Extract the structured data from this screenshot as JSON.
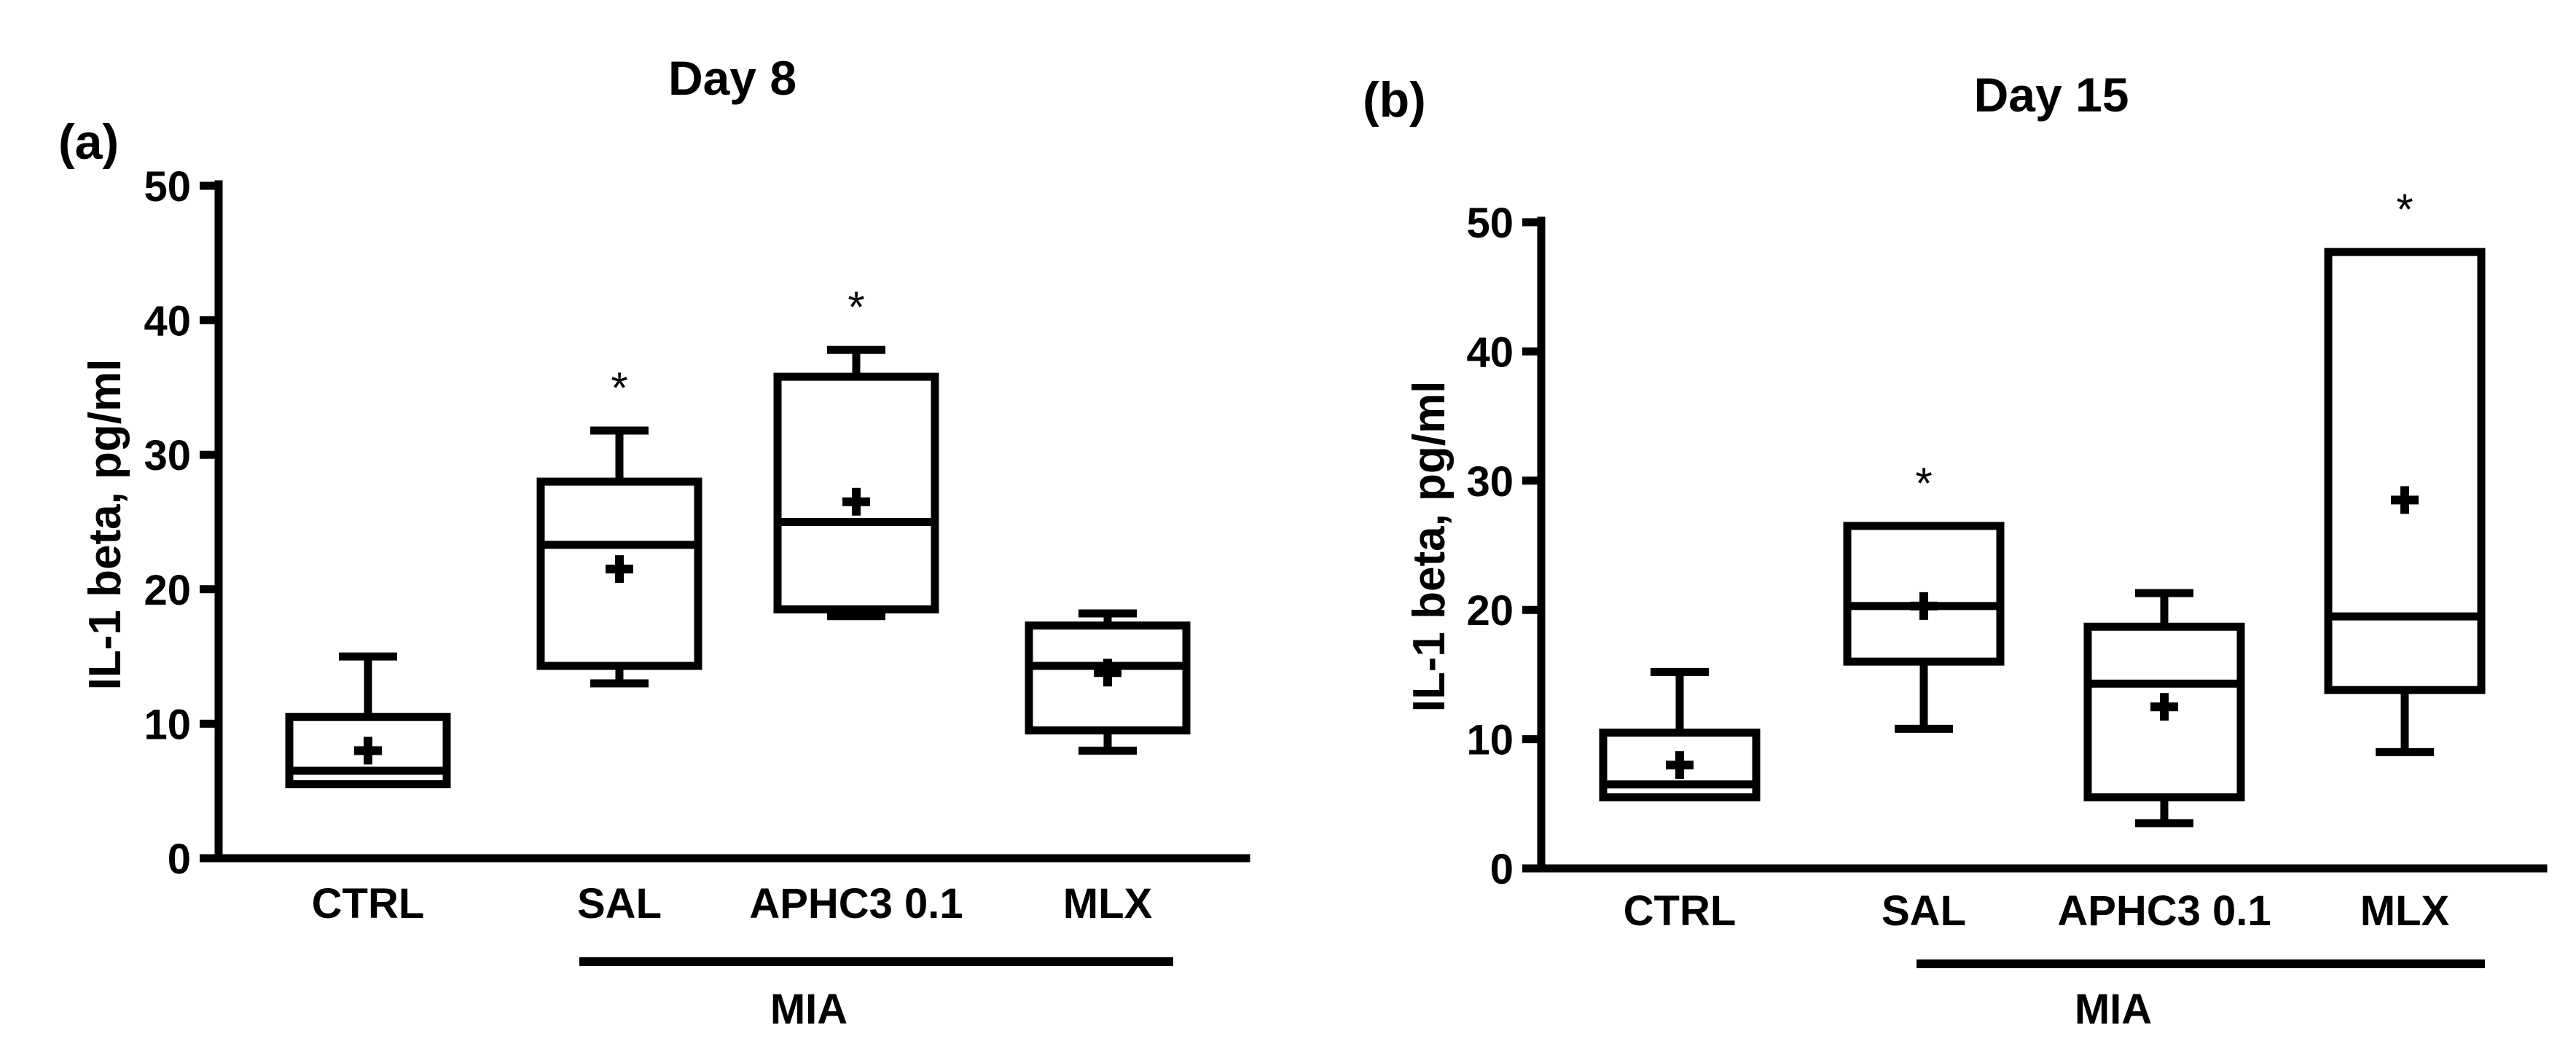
{
  "chart_data": [
    {
      "type": "box",
      "panel_label": "(a)",
      "title": "Day 8",
      "ylabel": "IL-1 beta, pg/ml",
      "ylim": [
        0,
        50
      ],
      "yticks": [
        "0",
        "10",
        "20",
        "30",
        "40",
        "50"
      ],
      "categories": [
        "CTRL",
        "SAL",
        "APHC3 0.1",
        "MLX"
      ],
      "group_label": "MIA",
      "group_categories": [
        "SAL",
        "APHC3 0.1",
        "MLX"
      ],
      "boxes": [
        {
          "category": "CTRL",
          "min": 5.5,
          "q1": 5.5,
          "median": 6.5,
          "q3": 10.5,
          "max": 15,
          "mean": 8,
          "significance": ""
        },
        {
          "category": "SAL",
          "min": 13,
          "q1": 14.3,
          "median": 23.3,
          "q3": 28,
          "max": 31.8,
          "mean": 21.5,
          "significance": "*"
        },
        {
          "category": "APHC3 0.1",
          "min": 18,
          "q1": 18.5,
          "median": 25,
          "q3": 35.8,
          "max": 37.8,
          "mean": 26.5,
          "significance": "*"
        },
        {
          "category": "MLX",
          "min": 8,
          "q1": 9.5,
          "median": 14.3,
          "q3": 17.3,
          "max": 18.2,
          "mean": 13.8,
          "significance": ""
        }
      ]
    },
    {
      "type": "box",
      "panel_label": "(b)",
      "title": "Day 15",
      "ylabel": "IL-1 beta, pg/ml",
      "ylim": [
        0,
        50
      ],
      "yticks": [
        "0",
        "10",
        "20",
        "30",
        "40",
        "50"
      ],
      "categories": [
        "CTRL",
        "SAL",
        "APHC3 0.1",
        "MLX"
      ],
      "group_label": "MIA",
      "group_categories": [
        "SAL",
        "APHC3 0.1",
        "MLX"
      ],
      "boxes": [
        {
          "category": "CTRL",
          "min": 5.5,
          "q1": 5.5,
          "median": 6.5,
          "q3": 10.5,
          "max": 15.2,
          "mean": 8,
          "significance": ""
        },
        {
          "category": "SAL",
          "min": 10.8,
          "q1": 16,
          "median": 20.3,
          "q3": 26.5,
          "max": 26.5,
          "mean": 20.3,
          "significance": "*"
        },
        {
          "category": "APHC3 0.1",
          "min": 3.5,
          "q1": 5.5,
          "median": 14.3,
          "q3": 18.7,
          "max": 21.3,
          "mean": 12.5,
          "significance": ""
        },
        {
          "category": "MLX",
          "min": 9,
          "q1": 13.8,
          "median": 19.5,
          "q3": 47.7,
          "max": 47.7,
          "mean": 28.5,
          "significance": "*"
        }
      ]
    }
  ]
}
